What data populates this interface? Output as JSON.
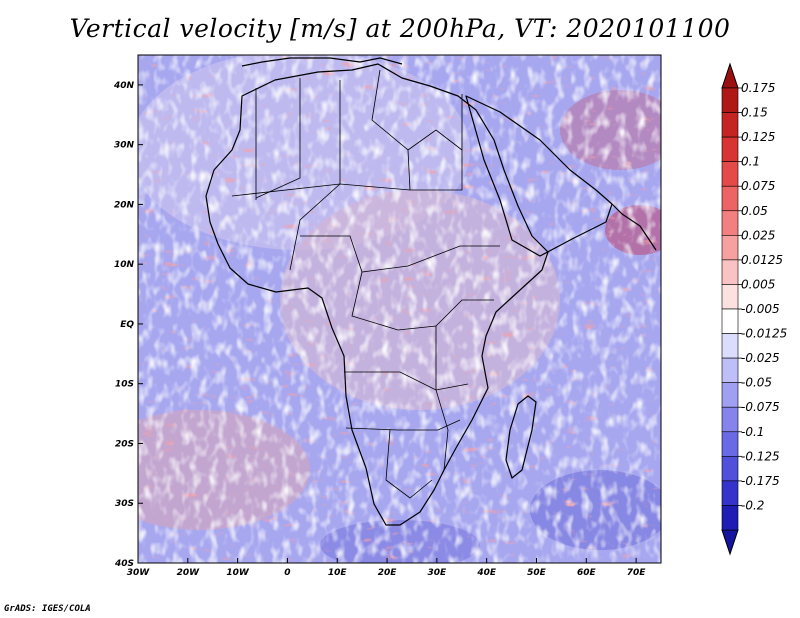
{
  "title": "Vertical velocity [m/s] at 200hPa, VT: 2020101100",
  "footer": "GrADS: IGES/COLA",
  "map": {
    "region": "Africa",
    "lon_range": [
      -30,
      75
    ],
    "lat_range": [
      -40,
      45
    ],
    "lon_ticks": [
      {
        "value": -30,
        "label": "30W"
      },
      {
        "value": -20,
        "label": "20W"
      },
      {
        "value": -10,
        "label": "10W"
      },
      {
        "value": 0,
        "label": "0"
      },
      {
        "value": 10,
        "label": "10E"
      },
      {
        "value": 20,
        "label": "20E"
      },
      {
        "value": 30,
        "label": "30E"
      },
      {
        "value": 40,
        "label": "40E"
      },
      {
        "value": 50,
        "label": "50E"
      },
      {
        "value": 60,
        "label": "60E"
      },
      {
        "value": 70,
        "label": "70E"
      }
    ],
    "lat_ticks": [
      {
        "value": 40,
        "label": "40N"
      },
      {
        "value": 30,
        "label": "30N"
      },
      {
        "value": 20,
        "label": "20N"
      },
      {
        "value": 10,
        "label": "10N"
      },
      {
        "value": 0,
        "label": "EQ"
      },
      {
        "value": -10,
        "label": "10S"
      },
      {
        "value": -20,
        "label": "20S"
      },
      {
        "value": -30,
        "label": "30S"
      },
      {
        "value": -40,
        "label": "40S"
      }
    ]
  },
  "colorbar": {
    "levels": [
      {
        "label": "0.175",
        "color": "#b01818"
      },
      {
        "label": "0.15",
        "color": "#c52424"
      },
      {
        "label": "0.125",
        "color": "#d83434"
      },
      {
        "label": "0.1",
        "color": "#e44a4a"
      },
      {
        "label": "0.075",
        "color": "#ec6464"
      },
      {
        "label": "0.05",
        "color": "#f28080"
      },
      {
        "label": "0.025",
        "color": "#f6a0a0"
      },
      {
        "label": "0.0125",
        "color": "#fac2c2"
      },
      {
        "label": "0.005",
        "color": "#fde0e0"
      },
      {
        "label": "-0.005",
        "color": "#ffffff"
      },
      {
        "label": "-0.0125",
        "color": "#dcdcfc"
      },
      {
        "label": "-0.025",
        "color": "#bebef8"
      },
      {
        "label": "-0.05",
        "color": "#a0a0f2"
      },
      {
        "label": "-0.075",
        "color": "#8484ec"
      },
      {
        "label": "-0.1",
        "color": "#6a6ae4"
      },
      {
        "label": "-0.125",
        "color": "#5050da"
      },
      {
        "label": "-0.175",
        "color": "#3434cc"
      },
      {
        "label": "-0.2",
        "color": "#1e1eb4"
      }
    ],
    "top_end_color": "#9a1010",
    "bottom_end_color": "#14149e"
  }
}
